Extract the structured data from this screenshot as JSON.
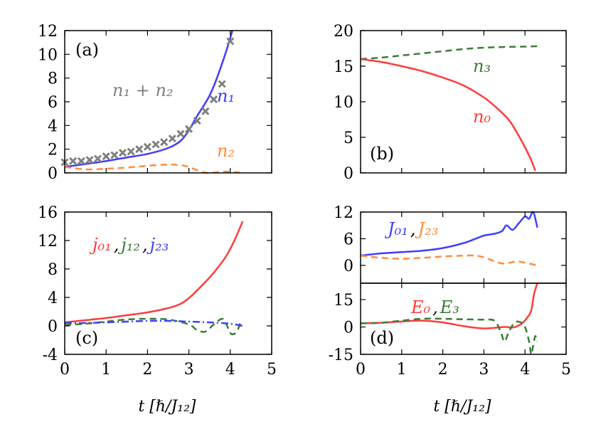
{
  "chart_data": [
    {
      "id": "a",
      "type": "line",
      "panel_label": "(a)",
      "xlim": [
        0,
        5
      ],
      "ylim": [
        0,
        12
      ],
      "xticks": [
        0,
        1,
        2,
        3,
        4,
        5
      ],
      "show_xtick_labels": false,
      "yticks": [
        "0",
        "2",
        "4",
        "6",
        "8",
        "10",
        "12"
      ],
      "annotations": [
        {
          "text": "n₁ + n₂",
          "color": "#808080"
        },
        {
          "text": "n₁",
          "color": "#3f3fff"
        },
        {
          "text": "n₂",
          "color": "#ff8c3c"
        }
      ],
      "series": [
        {
          "style": "solid",
          "color": "#3f3fff",
          "x": [
            0,
            0.5,
            1,
            1.5,
            2,
            2.5,
            2.8,
            3,
            3.2,
            3.45,
            3.6,
            3.8,
            3.95,
            4.05
          ],
          "y": [
            0.5,
            0.75,
            1.0,
            1.3,
            1.6,
            2.1,
            2.7,
            3.6,
            4.8,
            6.2,
            7.3,
            9.2,
            10.8,
            12
          ]
        },
        {
          "style": "dashed",
          "color": "#ff8c3c",
          "x": [
            0,
            0.5,
            1,
            1.5,
            2,
            2.5,
            2.8,
            3,
            3.3,
            3.5,
            3.8,
            4,
            4.3
          ],
          "y": [
            0.5,
            0.3,
            0.35,
            0.45,
            0.6,
            0.7,
            0.65,
            0.5,
            0.1,
            0.0,
            0.1,
            0.1,
            0.0
          ]
        },
        {
          "style": "cross",
          "color": "#808080",
          "x": [
            0,
            0.2,
            0.4,
            0.6,
            0.8,
            1.0,
            1.2,
            1.4,
            1.6,
            1.8,
            2.0,
            2.2,
            2.4,
            2.6,
            2.8,
            3.0,
            3.2,
            3.4,
            3.6,
            3.8,
            4.0
          ],
          "y": [
            0.9,
            1.0,
            1.0,
            1.1,
            1.2,
            1.4,
            1.5,
            1.7,
            1.8,
            2.0,
            2.2,
            2.4,
            2.6,
            2.9,
            3.3,
            3.7,
            4.4,
            5.2,
            6.2,
            7.5,
            11.1
          ]
        }
      ]
    },
    {
      "id": "b",
      "type": "line",
      "panel_label": "(b)",
      "xlim": [
        0,
        5
      ],
      "ylim": [
        0,
        20
      ],
      "xticks": [
        0,
        1,
        2,
        3,
        4,
        5
      ],
      "show_xtick_labels": false,
      "yticks": [
        "0",
        "5",
        "10",
        "15",
        "20"
      ],
      "annotations": [
        {
          "text": "n₃",
          "color": "#3a7d35"
        },
        {
          "text": "n₀",
          "color": "#ff3c3c"
        }
      ],
      "series": [
        {
          "style": "dashed",
          "color": "#3a7d35",
          "x": [
            0,
            0.5,
            1,
            1.5,
            2,
            2.5,
            3,
            3.5,
            4,
            4.3
          ],
          "y": [
            16,
            16.2,
            16.5,
            16.8,
            17.1,
            17.4,
            17.6,
            17.7,
            17.75,
            17.8
          ]
        },
        {
          "style": "solid",
          "color": "#ff3c3c",
          "x": [
            0,
            0.5,
            1,
            1.5,
            2,
            2.5,
            3,
            3.3,
            3.6,
            3.8,
            4.0,
            4.15,
            4.25
          ],
          "y": [
            16,
            15.6,
            15.0,
            14.3,
            13.4,
            12.3,
            10.6,
            9.2,
            7.5,
            5.7,
            3.6,
            1.8,
            0.3
          ]
        }
      ]
    },
    {
      "id": "c",
      "type": "line",
      "panel_label": "(c)",
      "xlim": [
        0,
        5
      ],
      "ylim": [
        -4,
        16
      ],
      "xticks": [
        0,
        1,
        2,
        3,
        4,
        5
      ],
      "show_xtick_labels": true,
      "yticks": [
        "-4",
        "0",
        "4",
        "8",
        "12",
        "16"
      ],
      "xlabel": "t [ℏ/J₁₂]",
      "annotations": [
        {
          "text": "j₀₁",
          "color": "#ff3c3c"
        },
        {
          "text": ",",
          "color": "#000000"
        },
        {
          "text": "j₁₂",
          "color": "#3a7d35"
        },
        {
          "text": ",",
          "color": "#000000"
        },
        {
          "text": "j₂₃",
          "color": "#3f3fff"
        }
      ],
      "series": [
        {
          "style": "solid",
          "color": "#ff3c3c",
          "x": [
            0,
            0.5,
            1,
            1.5,
            2,
            2.5,
            2.8,
            3,
            3.2,
            3.5,
            3.7,
            3.9,
            4.1,
            4.3
          ],
          "y": [
            0.5,
            0.8,
            1.1,
            1.5,
            1.9,
            2.5,
            3.1,
            3.9,
            5.0,
            6.8,
            8.2,
            9.8,
            12,
            14.7
          ]
        },
        {
          "style": "dashed",
          "color": "#3a7d35",
          "x": [
            0,
            0.5,
            1,
            1.5,
            2,
            2.5,
            3,
            3.2,
            3.4,
            3.6,
            3.8,
            3.9,
            4.0,
            4.1,
            4.2,
            4.25
          ],
          "y": [
            0.1,
            0.3,
            0.6,
            0.9,
            1.0,
            0.9,
            0.2,
            -0.6,
            -0.8,
            0.2,
            1.0,
            0.3,
            -1.0,
            -1.1,
            -0.3,
            0.8
          ]
        },
        {
          "style": "dashdot",
          "color": "#3f3fff",
          "x": [
            0,
            0.5,
            1,
            1.5,
            2,
            2.5,
            3,
            3.5,
            4,
            4.3
          ],
          "y": [
            0.4,
            0.4,
            0.5,
            0.6,
            0.7,
            0.7,
            0.6,
            0.5,
            0.3,
            0.0
          ]
        }
      ]
    },
    {
      "id": "d-top",
      "type": "line",
      "xlim": [
        0,
        5
      ],
      "ylim": [
        -4,
        12
      ],
      "xticks": [
        0,
        1,
        2,
        3,
        4,
        5
      ],
      "show_xtick_labels": false,
      "yticks": [
        "0",
        "6",
        "12"
      ],
      "annotations": [
        {
          "text": "J₀₁",
          "color": "#3f3fff"
        },
        {
          "text": ",",
          "color": "#000000"
        },
        {
          "text": "J₂₃",
          "color": "#ff8c3c"
        }
      ],
      "series": [
        {
          "style": "solid",
          "color": "#3f3fff",
          "x": [
            0,
            0.5,
            1,
            1.5,
            2,
            2.5,
            2.8,
            3,
            3.3,
            3.45,
            3.55,
            3.7,
            3.85,
            4.0,
            4.1,
            4.2,
            4.3
          ],
          "y": [
            2.2,
            2.7,
            3.0,
            3.3,
            3.9,
            5.0,
            6.0,
            6.7,
            7.2,
            7.8,
            9.0,
            8.0,
            9.5,
            11.0,
            10.5,
            12,
            8.5
          ]
        },
        {
          "style": "dashed",
          "color": "#ff8c3c",
          "x": [
            0,
            0.5,
            1,
            1.5,
            2,
            2.5,
            2.8,
            3,
            3.3,
            3.5,
            3.8,
            4.0,
            4.3
          ],
          "y": [
            2.2,
            1.7,
            1.5,
            1.7,
            2.0,
            2.2,
            2.2,
            1.8,
            0.8,
            0.4,
            0.9,
            0.6,
            0.0
          ]
        }
      ]
    },
    {
      "id": "d-bottom",
      "type": "line",
      "panel_label": "(d)",
      "xlim": [
        0,
        5
      ],
      "ylim": [
        -15,
        24
      ],
      "xticks": [
        0,
        1,
        2,
        3,
        4,
        5
      ],
      "show_xtick_labels": true,
      "yticks": [
        "-15",
        "0",
        "15"
      ],
      "xlabel": "t [ℏ/J₁₂]",
      "annotations": [
        {
          "text": "E₀",
          "color": "#ff3c3c"
        },
        {
          "text": ",",
          "color": "#000000"
        },
        {
          "text": "E₃",
          "color": "#3a7d35"
        }
      ],
      "series": [
        {
          "style": "solid",
          "color": "#ff3c3c",
          "x": [
            0,
            0.5,
            1,
            1.5,
            2,
            2.5,
            3,
            3.5,
            3.7,
            3.9,
            4.05,
            4.15,
            4.22,
            4.3
          ],
          "y": [
            2,
            2.3,
            3,
            3.5,
            2.5,
            0.5,
            -0.8,
            0,
            -0.3,
            1.5,
            5,
            9,
            18,
            24
          ]
        },
        {
          "style": "dashed",
          "color": "#3a7d35",
          "x": [
            0,
            0.5,
            1,
            1.5,
            2,
            2.5,
            3,
            3.25,
            3.4,
            3.5,
            3.6,
            3.75,
            3.9,
            4.0,
            4.1,
            4.15,
            4.2,
            4.25,
            4.3
          ],
          "y": [
            2,
            2.3,
            3.5,
            4.5,
            4.5,
            4.2,
            4,
            3.5,
            -2,
            -8,
            -3,
            2.5,
            2.5,
            0,
            -8,
            -15,
            -10,
            -5,
            -8
          ]
        }
      ]
    }
  ]
}
